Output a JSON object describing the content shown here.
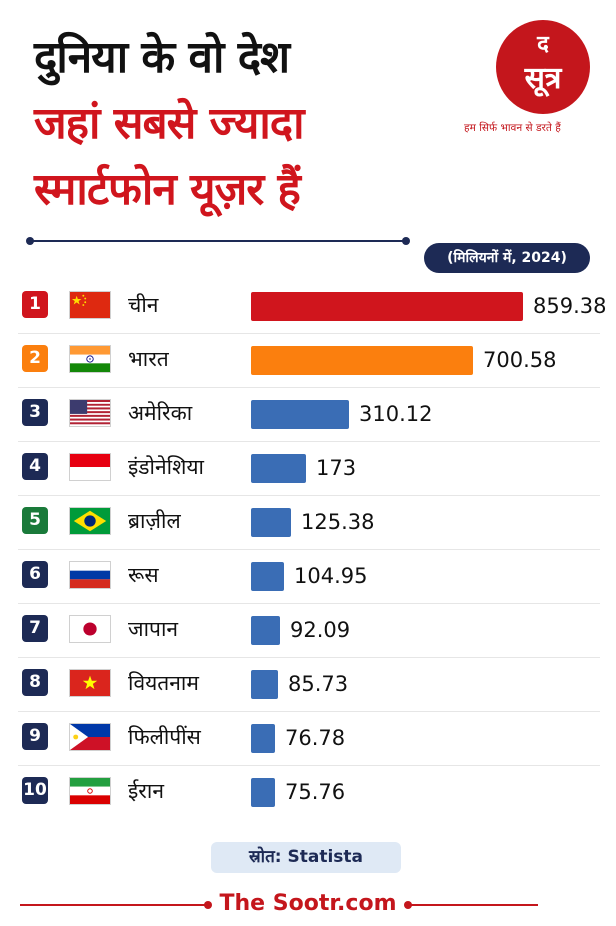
{
  "title": {
    "line1": "दुनिया के वो देश",
    "line2": "जहां सबसे ज्यादा",
    "line3": "स्मार्टफोन यूज़र हैं"
  },
  "brand": {
    "logo_top": "द",
    "logo_main": "सूत्र",
    "tagline": "हम सिर्फ भावन से डरते हैं",
    "site": "The Sootr.com",
    "color": "#c4161c"
  },
  "unit_label": "(मिलियनों में, 2024)",
  "source_label": "स्रोत: Statista",
  "chart_data": {
    "type": "bar",
    "orientation": "horizontal",
    "unit": "मिलियन",
    "categories": [
      "चीन",
      "भारत",
      "अमेरिका",
      "इंडोनेशिया",
      "ब्राज़ील",
      "रूस",
      "जापान",
      "वियतनाम",
      "फिलीपींस",
      "ईरान"
    ],
    "ranks": [
      "1",
      "2",
      "3",
      "4",
      "5",
      "6",
      "7",
      "8",
      "9",
      "10"
    ],
    "values": [
      859.38,
      700.58,
      310.12,
      173,
      125.38,
      104.95,
      92.09,
      85.73,
      76.78,
      75.76
    ],
    "value_labels": [
      "859.38",
      "700.58",
      "310.12",
      "173",
      "125.38",
      "104.95",
      "92.09",
      "85.73",
      "76.78",
      "75.76"
    ],
    "bar_colors": [
      "#d0151d",
      "#fb7f0e",
      "#3a6db5",
      "#3a6db5",
      "#3a6db5",
      "#3a6db5",
      "#3a6db5",
      "#3a6db5",
      "#3a6db5",
      "#3a6db5"
    ],
    "rank_colors": [
      "#d0151d",
      "#fb7f0e",
      "#1d2a55",
      "#1d2a55",
      "#1a7a3a",
      "#1d2a55",
      "#1d2a55",
      "#1d2a55",
      "#1d2a55",
      "#1d2a55"
    ],
    "flags": [
      "china-flag-icon",
      "india-flag-icon",
      "usa-flag-icon",
      "indonesia-flag-icon",
      "brazil-flag-icon",
      "russia-flag-icon",
      "japan-flag-icon",
      "vietnam-flag-icon",
      "philippines-flag-icon",
      "iran-flag-icon"
    ],
    "grid": false
  }
}
